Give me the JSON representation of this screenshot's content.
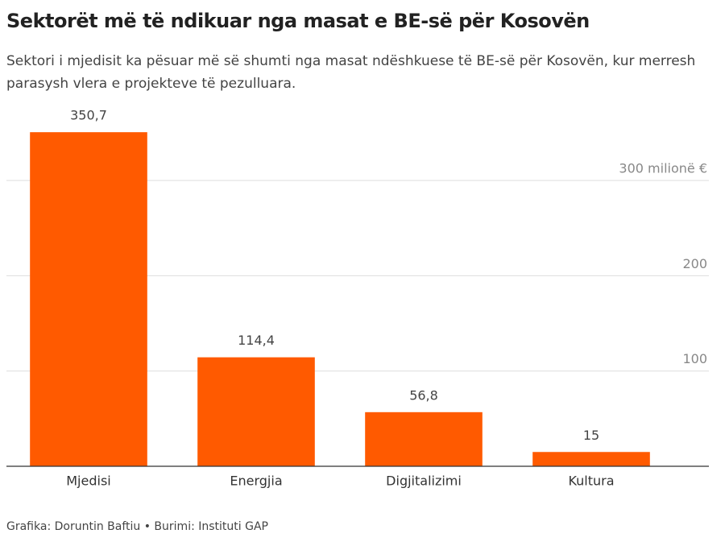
{
  "chart_data": {
    "type": "bar",
    "title": "Sektorët më të ndikuar nga masat e BE-së për Kosovën",
    "subtitle": "Sektori i mjedisit ka pësuar më së shumti nga masat ndëshkuese të BE-së për Kosovën, kur merresh parasysh vlera e projekteve të pezulluara.",
    "categories": [
      "Mjedisi",
      "Energjia",
      "Digjitalizimi",
      "Kultura"
    ],
    "values": [
      350.7,
      114.4,
      56.8,
      15
    ],
    "value_labels": [
      "350,7",
      "114,4",
      "56,8",
      "15"
    ],
    "color": "#ff5a00",
    "ylim": [
      0,
      380
    ],
    "yticks": [
      100,
      200,
      {
        "value": 300,
        "label": "300 milionë €"
      }
    ],
    "grid": true,
    "caption": "Grafika: Doruntin Baftiu • Burimi: Instituti GAP"
  }
}
